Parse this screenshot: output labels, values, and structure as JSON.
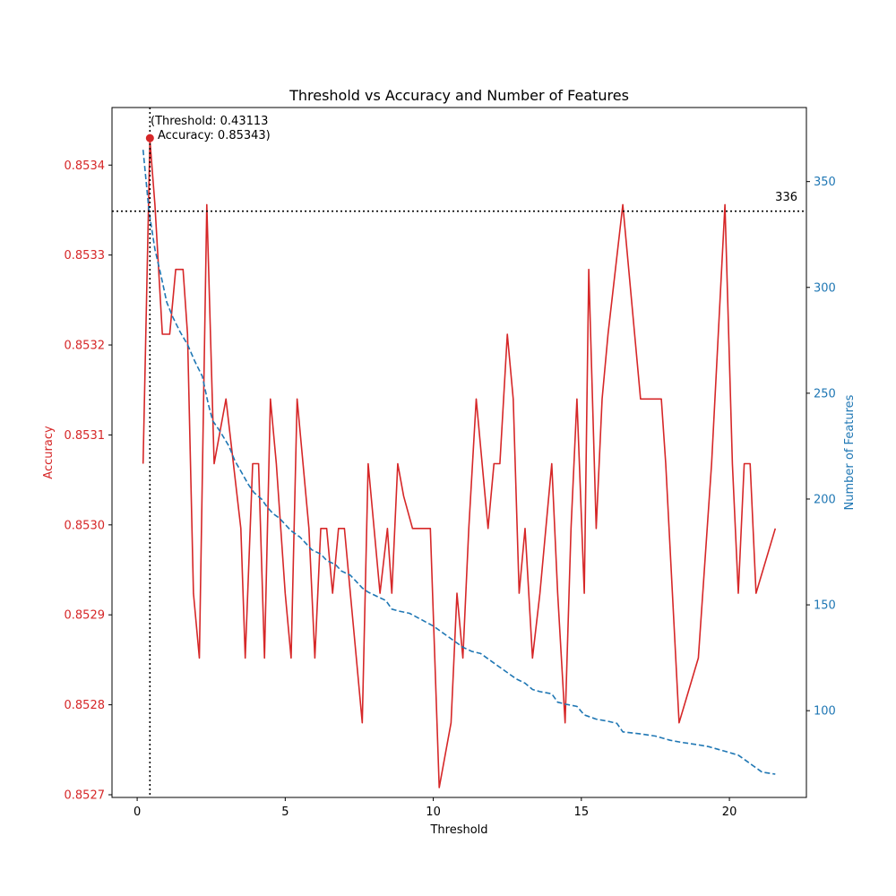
{
  "chart_data": {
    "type": "line",
    "title": "Threshold vs Accuracy and Number of Features",
    "xlabel": "Threshold",
    "ylabel_left": "Accuracy",
    "ylabel_right": "Number of Features",
    "xlim": [
      -0.85,
      22.6
    ],
    "ylim_left": [
      0.852697,
      0.853464
    ],
    "ylim_right": [
      59,
      385
    ],
    "x_ticks": [
      0,
      5,
      10,
      15,
      20
    ],
    "y_left_ticks": [
      "0.8527",
      "0.8528",
      "0.8529",
      "0.8530",
      "0.8531",
      "0.8532",
      "0.8533",
      "0.8534"
    ],
    "y_right_ticks": [
      100,
      150,
      200,
      250,
      300,
      350
    ],
    "colors": {
      "accuracy": "#d62728",
      "features": "#1f77b4",
      "reference": "#000000"
    },
    "series": [
      {
        "name": "Accuracy",
        "axis": "left",
        "style": "solid",
        "x": [
          0.2,
          0.43,
          0.6,
          0.85,
          1.1,
          1.3,
          1.55,
          1.7,
          1.9,
          2.1,
          2.35,
          2.6,
          2.8,
          3.0,
          3.25,
          3.5,
          3.65,
          3.9,
          4.1,
          4.3,
          4.5,
          4.7,
          5.0,
          5.2,
          5.4,
          5.6,
          5.8,
          6.0,
          6.2,
          6.4,
          6.6,
          6.8,
          7.0,
          7.2,
          7.4,
          7.6,
          7.8,
          8.0,
          8.2,
          8.45,
          8.6,
          8.8,
          9.0,
          9.3,
          9.6,
          9.9,
          10.2,
          10.6,
          10.8,
          11.0,
          11.2,
          11.45,
          11.65,
          11.85,
          12.05,
          12.25,
          12.5,
          12.7,
          12.9,
          13.1,
          13.35,
          13.6,
          14.0,
          14.2,
          14.45,
          14.65,
          14.85,
          15.1,
          15.25,
          15.5,
          15.7,
          15.9,
          16.4,
          16.7,
          17.0,
          17.3,
          17.7,
          17.85,
          18.3,
          18.95,
          19.4,
          19.85,
          20.1,
          20.3,
          20.5,
          20.7,
          20.9,
          21.55
        ],
        "values": [
          0.853068,
          0.853428,
          0.853356,
          0.853212,
          0.853212,
          0.853284,
          0.853284,
          0.853212,
          0.852924,
          0.852852,
          0.853356,
          0.853068,
          0.853104,
          0.85314,
          0.853068,
          0.852996,
          0.852852,
          0.853068,
          0.853068,
          0.852852,
          0.85314,
          0.853068,
          0.852924,
          0.852852,
          0.85314,
          0.853068,
          0.852996,
          0.852852,
          0.852996,
          0.852996,
          0.852924,
          0.852996,
          0.852996,
          0.852924,
          0.852852,
          0.85278,
          0.853068,
          0.852996,
          0.852924,
          0.852996,
          0.852924,
          0.853068,
          0.853032,
          0.852996,
          0.852996,
          0.852996,
          0.852708,
          0.85278,
          0.852924,
          0.852852,
          0.852996,
          0.85314,
          0.853068,
          0.852996,
          0.853068,
          0.853068,
          0.853212,
          0.85314,
          0.852924,
          0.852996,
          0.852852,
          0.852924,
          0.853068,
          0.852924,
          0.85278,
          0.852996,
          0.85314,
          0.852924,
          0.853284,
          0.852996,
          0.85314,
          0.853212,
          0.853356,
          0.853248,
          0.85314,
          0.85314,
          0.85314,
          0.853068,
          0.85278,
          0.852852,
          0.853068,
          0.853356,
          0.853068,
          0.852924,
          0.853068,
          0.853068,
          0.852924,
          0.852996
        ]
      },
      {
        "name": "Number of Features",
        "axis": "right",
        "style": "dashed",
        "x": [
          0.2,
          0.4,
          0.6,
          0.8,
          1.0,
          1.2,
          1.45,
          1.7,
          1.95,
          2.2,
          2.4,
          2.55,
          2.8,
          3.1,
          3.3,
          3.55,
          3.75,
          3.95,
          4.2,
          4.4,
          4.6,
          4.8,
          5.0,
          5.2,
          5.5,
          5.7,
          5.9,
          6.2,
          6.4,
          6.7,
          6.9,
          7.2,
          7.4,
          7.6,
          7.8,
          8.1,
          8.4,
          8.6,
          8.85,
          9.2,
          9.6,
          10.0,
          10.3,
          10.7,
          11.0,
          11.3,
          11.6,
          11.9,
          12.2,
          12.5,
          12.8,
          13.1,
          13.35,
          13.6,
          14.0,
          14.2,
          14.5,
          14.85,
          15.1,
          15.5,
          15.9,
          16.2,
          16.4,
          17.0,
          17.5,
          18.0,
          18.4,
          18.9,
          19.3,
          19.8,
          20.3,
          20.5,
          20.8,
          21.1,
          21.55
        ],
        "values": [
          365,
          336,
          318,
          306,
          293,
          286,
          279,
          273,
          265,
          258,
          245,
          237,
          232,
          225,
          218,
          212,
          207,
          203,
          200,
          196,
          193,
          191,
          188,
          185,
          182,
          179,
          176,
          174,
          171,
          169,
          166,
          164,
          161,
          158,
          156,
          154,
          152,
          148,
          147,
          146,
          143,
          140,
          137,
          133,
          130,
          128,
          127,
          124,
          121,
          118,
          115,
          113,
          110,
          109,
          108,
          104,
          103,
          102,
          98,
          96,
          95,
          94,
          90,
          89,
          88,
          86,
          85,
          84,
          83,
          81,
          79,
          77,
          74,
          71,
          70
        ]
      }
    ],
    "reference_lines": {
      "vertical_x": 0.43113,
      "horizontal_y_right": 336,
      "horizontal_label": "336"
    },
    "highlight_point": {
      "x": 0.43113,
      "y": 0.85343
    },
    "annotation": {
      "line1": "(Threshold: 0.43113",
      "line2": "Accuracy: 0.85343)"
    }
  }
}
